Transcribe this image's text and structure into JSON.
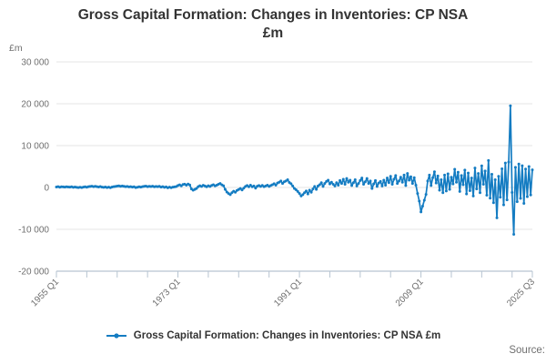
{
  "title": {
    "line1": "Gross Capital Formation: Changes in Inventories: CP NSA",
    "line2": "£m"
  },
  "axis_unit_label": "£m",
  "legend": {
    "label": "Gross Capital Formation: Changes in Inventories: CP NSA £m"
  },
  "source_label": "Source:",
  "colors": {
    "series": "#147cc2",
    "grid": "#e6e6e6",
    "axis": "#b7c4d1",
    "tick_text": "#6f6f6f",
    "title_text": "#333333"
  },
  "chart_data": {
    "type": "line",
    "title": "Gross Capital Formation: Changes in Inventories: CP NSA £m",
    "ylabel": "£m",
    "frequency": "quarterly",
    "x_start": "1955 Q1",
    "x_end": "2025 Q3",
    "ylim": [
      -20000,
      30000
    ],
    "grid": "horizontal-only",
    "legend_position": "bottom",
    "yticks": [
      {
        "value": 30000,
        "label": "30 000"
      },
      {
        "value": 20000,
        "label": "20 000"
      },
      {
        "value": 10000,
        "label": "10 000"
      },
      {
        "value": 0,
        "label": "0"
      },
      {
        "value": -10000,
        "label": "-10 000"
      },
      {
        "value": -20000,
        "label": "-20 000"
      }
    ],
    "xticks_labeled": [
      {
        "q": 0,
        "label": "1955 Q1"
      },
      {
        "q": 72,
        "label": "1973 Q1"
      },
      {
        "q": 144,
        "label": "1991 Q1"
      },
      {
        "q": 216,
        "label": "2009 Q1"
      },
      {
        "q": 282,
        "label": "2025 Q3"
      }
    ],
    "xtick_minor_every_quarters": 18,
    "values": [
      120,
      180,
      60,
      150,
      140,
      90,
      170,
      110,
      80,
      160,
      40,
      120,
      30,
      -40,
      60,
      -20,
      90,
      150,
      60,
      180,
      240,
      300,
      180,
      260,
      200,
      120,
      220,
      90,
      40,
      110,
      -30,
      70,
      -60,
      120,
      180,
      240,
      320,
      380,
      280,
      350,
      260,
      180,
      240,
      140,
      190,
      80,
      150,
      -40,
      60,
      150,
      90,
      200,
      260,
      320,
      190,
      280,
      210,
      300,
      160,
      240,
      180,
      260,
      90,
      200,
      40,
      130,
      -80,
      90,
      -60,
      80,
      140,
      220,
      450,
      620,
      380,
      700,
      780,
      550,
      820,
      600,
      -350,
      -650,
      -450,
      -250,
      180,
      420,
      250,
      520,
      350,
      150,
      400,
      250,
      480,
      650,
      380,
      550,
      750,
      950,
      620,
      400,
      -450,
      -1100,
      -1450,
      -1700,
      -1250,
      -900,
      -1150,
      -700,
      -500,
      -250,
      -600,
      -150,
      250,
      450,
      150,
      550,
      150,
      350,
      -150,
      300,
      450,
      250,
      500,
      200,
      350,
      550,
      250,
      450,
      650,
      900,
      550,
      1050,
      1250,
      1550,
      950,
      1350,
      1550,
      1850,
      1200,
      900,
      350,
      -250,
      -550,
      -950,
      -1450,
      -2050,
      -1700,
      -1250,
      -850,
      -1550,
      -650,
      -1150,
      -350,
      250,
      -450,
      350,
      650,
      1150,
      250,
      950,
      1450,
      1750,
      850,
      1250,
      750,
      350,
      1150,
      550,
      1650,
      950,
      1950,
      750,
      2150,
      1250,
      1750,
      450,
      1150,
      1850,
      350,
      950,
      1650,
      2250,
      750,
      1350,
      2150,
      950,
      1550,
      -250,
      850,
      1650,
      250,
      1050,
      1450,
      350,
      1750,
      550,
      2250,
      1150,
      2650,
      750,
      1950,
      2850,
      950,
      1550,
      2450,
      1250,
      2950,
      450,
      3350,
      1750,
      2550,
      950,
      2350,
      550,
      -1450,
      -3250,
      -5850,
      -4450,
      -3050,
      -1650,
      1550,
      2950,
      450,
      2350,
      3750,
      1050,
      2750,
      -650,
      1850,
      -1250,
      2950,
      -850,
      3250,
      -450,
      2450,
      850,
      4350,
      1250,
      3650,
      -950,
      2850,
      650,
      4150,
      -1550,
      3450,
      -750,
      2250,
      -2050,
      4650,
      -350,
      3350,
      -1250,
      5150,
      750,
      3950,
      -1850,
      6450,
      -2550,
      3150,
      -3650,
      1850,
      -7250,
      2650,
      -2350,
      4450,
      -4150,
      5850,
      -2950,
      6050,
      19500,
      -1200,
      -11200,
      4800,
      -3400,
      5600,
      -2600,
      5200,
      -3800,
      4400,
      -2200,
      5000,
      -1800,
      4200
    ]
  }
}
